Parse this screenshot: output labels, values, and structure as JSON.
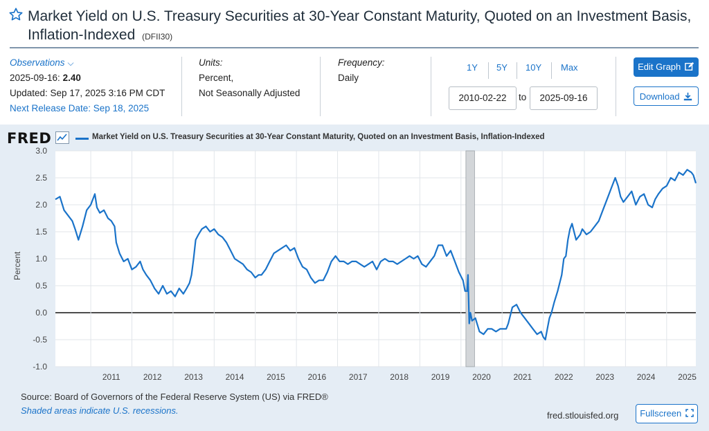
{
  "header": {
    "title": "Market Yield on U.S. Treasury Securities at 30-Year Constant Maturity, Quoted on an Investment Basis, Inflation-Indexed",
    "series_id": "(DFII30)",
    "star_icon": "star-outline-icon"
  },
  "observations": {
    "label": "Observations",
    "date": "2025-09-16:",
    "value": "2.40",
    "updated": "Updated: Sep 17, 2025 3:16 PM CDT",
    "next_release": "Next Release Date: Sep 18, 2025"
  },
  "units": {
    "label": "Units:",
    "line1": "Percent,",
    "line2": "Not Seasonally Adjusted"
  },
  "frequency": {
    "label": "Frequency:",
    "value": "Daily"
  },
  "range": {
    "buttons": [
      "1Y",
      "5Y",
      "10Y",
      "Max"
    ],
    "start": "2010-02-22",
    "to": "to",
    "end": "2025-09-16"
  },
  "actions": {
    "edit": "Edit Graph",
    "download": "Download",
    "fullscreen": "Fullscreen"
  },
  "footer": {
    "logo": "FRED",
    "source": "Source: Board of Governors of the Federal Reserve System (US) via FRED®",
    "shaded_note": "Shaded areas indicate U.S. recessions.",
    "site": "fred.stlouisfed.org"
  },
  "colors": {
    "series": "#1a73c9",
    "panel": "#e5edf5",
    "recession": "#d3d6d9"
  },
  "chart_data": {
    "type": "line",
    "legend": "Market Yield on U.S. Treasury Securities at 30-Year Constant Maturity, Quoted on an Investment Basis, Inflation-Indexed",
    "ylabel": "Percent",
    "xlabel": "",
    "ylim": [
      -1.0,
      3.0
    ],
    "yticks": [
      "3.0",
      "2.5",
      "2.0",
      "1.5",
      "1.0",
      "0.5",
      "0.0",
      "-0.5",
      "-1.0"
    ],
    "xlim": [
      2010.14,
      2025.71
    ],
    "xticks": [
      "2011",
      "2012",
      "2013",
      "2014",
      "2015",
      "2016",
      "2017",
      "2018",
      "2019",
      "2020",
      "2021",
      "2022",
      "2023",
      "2024",
      "2025"
    ],
    "zero_line": true,
    "grid": true,
    "recessions": [
      [
        2020.12,
        2020.33
      ]
    ],
    "series": [
      {
        "name": "DFII30",
        "x": [
          2010.14,
          2010.25,
          2010.35,
          2010.45,
          2010.55,
          2010.62,
          2010.7,
          2010.8,
          2010.9,
          2011.0,
          2011.1,
          2011.15,
          2011.22,
          2011.32,
          2011.42,
          2011.5,
          2011.58,
          2011.62,
          2011.7,
          2011.8,
          2011.9,
          2012.0,
          2012.1,
          2012.2,
          2012.27,
          2012.35,
          2012.45,
          2012.55,
          2012.65,
          2012.75,
          2012.85,
          2012.95,
          2013.05,
          2013.15,
          2013.25,
          2013.33,
          2013.4,
          2013.45,
          2013.5,
          2013.55,
          2013.62,
          2013.7,
          2013.8,
          2013.9,
          2014.0,
          2014.1,
          2014.2,
          2014.3,
          2014.4,
          2014.5,
          2014.6,
          2014.7,
          2014.8,
          2014.9,
          2015.0,
          2015.08,
          2015.15,
          2015.25,
          2015.35,
          2015.45,
          2015.55,
          2015.65,
          2015.75,
          2015.85,
          2015.95,
          2016.05,
          2016.15,
          2016.25,
          2016.35,
          2016.45,
          2016.55,
          2016.65,
          2016.75,
          2016.85,
          2016.95,
          2017.05,
          2017.15,
          2017.25,
          2017.35,
          2017.45,
          2017.55,
          2017.65,
          2017.75,
          2017.85,
          2017.95,
          2018.05,
          2018.15,
          2018.25,
          2018.35,
          2018.45,
          2018.55,
          2018.65,
          2018.75,
          2018.85,
          2018.95,
          2019.05,
          2019.15,
          2019.25,
          2019.35,
          2019.45,
          2019.55,
          2019.65,
          2019.75,
          2019.85,
          2019.95,
          2020.05,
          2020.1,
          2020.15,
          2020.17,
          2020.2,
          2020.23,
          2020.27,
          2020.35,
          2020.45,
          2020.55,
          2020.65,
          2020.75,
          2020.85,
          2020.95,
          2021.05,
          2021.1,
          2021.15,
          2021.25,
          2021.35,
          2021.45,
          2021.55,
          2021.65,
          2021.75,
          2021.85,
          2021.95,
          2022.0,
          2022.05,
          2022.1,
          2022.15,
          2022.2,
          2022.27,
          2022.35,
          2022.45,
          2022.5,
          2022.55,
          2022.6,
          2022.65,
          2022.7,
          2022.75,
          2022.8,
          2022.85,
          2022.9,
          2022.95,
          2023.05,
          2023.15,
          2023.25,
          2023.35,
          2023.45,
          2023.55,
          2023.65,
          2023.75,
          2023.82,
          2023.88,
          2023.95,
          2024.05,
          2024.15,
          2024.25,
          2024.35,
          2024.45,
          2024.55,
          2024.65,
          2024.72,
          2024.8,
          2024.9,
          2025.0,
          2025.1,
          2025.2,
          2025.3,
          2025.4,
          2025.5,
          2025.6,
          2025.65,
          2025.71
        ],
        "y": [
          2.1,
          2.15,
          1.9,
          1.8,
          1.7,
          1.55,
          1.35,
          1.6,
          1.9,
          2.0,
          2.2,
          1.95,
          1.85,
          1.9,
          1.75,
          1.7,
          1.6,
          1.3,
          1.1,
          0.95,
          1.0,
          0.8,
          0.85,
          0.95,
          0.8,
          0.7,
          0.6,
          0.45,
          0.35,
          0.5,
          0.35,
          0.4,
          0.3,
          0.45,
          0.35,
          0.45,
          0.55,
          0.7,
          1.0,
          1.35,
          1.45,
          1.55,
          1.6,
          1.5,
          1.55,
          1.45,
          1.4,
          1.3,
          1.15,
          1.0,
          0.95,
          0.9,
          0.8,
          0.75,
          0.65,
          0.7,
          0.7,
          0.8,
          0.95,
          1.1,
          1.15,
          1.2,
          1.25,
          1.15,
          1.2,
          1.0,
          0.85,
          0.8,
          0.65,
          0.55,
          0.6,
          0.6,
          0.75,
          0.95,
          1.05,
          0.95,
          0.95,
          0.9,
          0.95,
          0.95,
          0.9,
          0.85,
          0.9,
          0.95,
          0.8,
          0.95,
          1.0,
          0.95,
          0.95,
          0.9,
          0.95,
          1.0,
          1.05,
          1.0,
          1.05,
          0.9,
          0.85,
          0.95,
          1.05,
          1.25,
          1.25,
          1.05,
          1.15,
          0.95,
          0.75,
          0.6,
          0.4,
          0.4,
          0.7,
          -0.2,
          0.0,
          -0.15,
          -0.1,
          -0.35,
          -0.4,
          -0.3,
          -0.3,
          -0.35,
          -0.3,
          -0.3,
          -0.3,
          -0.2,
          0.1,
          0.15,
          0.0,
          -0.1,
          -0.2,
          -0.3,
          -0.4,
          -0.35,
          -0.45,
          -0.5,
          -0.3,
          -0.1,
          0.0,
          0.2,
          0.4,
          0.7,
          1.0,
          1.05,
          1.35,
          1.55,
          1.65,
          1.5,
          1.35,
          1.4,
          1.45,
          1.55,
          1.45,
          1.5,
          1.6,
          1.7,
          1.9,
          2.1,
          2.3,
          2.5,
          2.35,
          2.15,
          2.05,
          2.15,
          2.25,
          2.0,
          2.15,
          2.2,
          2.0,
          1.95,
          2.1,
          2.2,
          2.3,
          2.35,
          2.5,
          2.45,
          2.6,
          2.55,
          2.65,
          2.6,
          2.55,
          2.4
        ]
      }
    ]
  }
}
